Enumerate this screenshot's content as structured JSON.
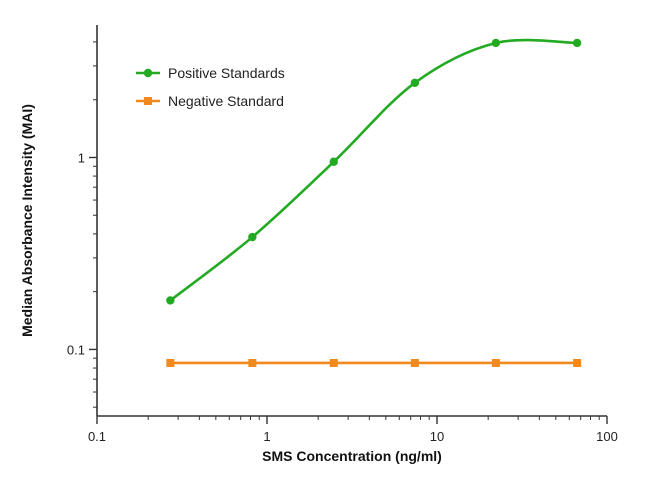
{
  "chart_data": {
    "type": "line",
    "xlabel": "SMS Concentration (ng/ml)",
    "ylabel": "Median Absorbance Intensity (MAI)",
    "xscale": "log",
    "yscale": "log",
    "xlim": [
      0.1,
      100
    ],
    "ylim": [
      0.045,
      4.9
    ],
    "x_ticks": [
      0.1,
      1,
      10,
      100
    ],
    "x_tick_labels": [
      "0.1",
      "1",
      "10",
      "100"
    ],
    "y_ticks": [
      0.1,
      1
    ],
    "y_tick_labels": [
      "0.1",
      "1"
    ],
    "grid": false,
    "legend_position": "top-left",
    "series": [
      {
        "name": "Positive Standards",
        "color": "#22aa22",
        "marker": "circle",
        "x": [
          0.27,
          0.82,
          2.47,
          7.41,
          22.2,
          66.7
        ],
        "y": [
          0.18,
          0.385,
          0.95,
          2.45,
          3.95,
          3.95
        ]
      },
      {
        "name": "Negative Standard",
        "color": "#f08a1e",
        "marker": "square",
        "x": [
          0.27,
          0.82,
          2.47,
          7.41,
          22.2,
          66.7
        ],
        "y": [
          0.085,
          0.085,
          0.085,
          0.085,
          0.085,
          0.085
        ]
      }
    ]
  }
}
